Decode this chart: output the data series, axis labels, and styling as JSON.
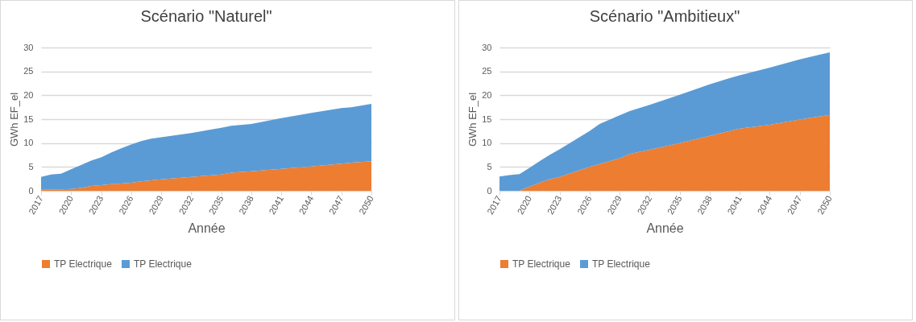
{
  "chart_data": [
    {
      "type": "area",
      "title": "Scénario \"Naturel\"",
      "xlabel": "Année",
      "ylabel": "GWh EF_el",
      "stacked": true,
      "grid": "y",
      "legend": "bottom",
      "x": [
        2017,
        2018,
        2019,
        2020,
        2021,
        2022,
        2023,
        2024,
        2025,
        2026,
        2027,
        2028,
        2029,
        2032,
        2035,
        2036,
        2038,
        2041,
        2044,
        2047,
        2048,
        2050
      ],
      "xlim": [
        2017,
        2050
      ],
      "xticks": [
        2017,
        2020,
        2023,
        2026,
        2029,
        2032,
        2035,
        2038,
        2041,
        2044,
        2047,
        2050
      ],
      "ylim": [
        0,
        30
      ],
      "yticks": [
        0,
        5,
        10,
        15,
        20,
        25,
        30
      ],
      "series": [
        {
          "name": "TP Electrique",
          "color": "#ed7d31",
          "values": [
            0.3,
            0.3,
            0.3,
            0.4,
            0.6,
            1.0,
            1.2,
            1.4,
            1.5,
            1.7,
            2.0,
            2.2,
            2.4,
            2.9,
            3.4,
            3.8,
            4.1,
            4.6,
            5.1,
            5.7,
            5.9,
            6.2
          ]
        },
        {
          "name": "TP Electrique",
          "color": "#5b9bd5",
          "values": [
            2.6,
            3.1,
            3.3,
            4.1,
            4.8,
            5.3,
            5.8,
            6.6,
            7.4,
            8.0,
            8.4,
            8.7,
            8.8,
            9.2,
            9.8,
            9.8,
            9.9,
            10.6,
            11.2,
            11.6,
            11.6,
            12.0
          ]
        }
      ]
    },
    {
      "type": "area",
      "title": "Scénario \"Ambitieux\"",
      "xlabel": "Année",
      "ylabel": "GWh EF_el",
      "stacked": true,
      "grid": "y",
      "legend": "bottom",
      "x": [
        2017,
        2018,
        2019,
        2020,
        2021,
        2022,
        2023,
        2026,
        2027,
        2029,
        2030,
        2032,
        2035,
        2038,
        2040,
        2041,
        2044,
        2047,
        2050
      ],
      "xlim": [
        2017,
        2050
      ],
      "xticks": [
        2017,
        2020,
        2023,
        2026,
        2029,
        2032,
        2035,
        2038,
        2041,
        2044,
        2047,
        2050
      ],
      "ylim": [
        0,
        30
      ],
      "yticks": [
        0,
        5,
        10,
        15,
        20,
        25,
        30
      ],
      "series": [
        {
          "name": "TP Electrique",
          "color": "#ed7d31",
          "values": [
            0,
            0,
            0,
            0.9,
            1.7,
            2.4,
            2.9,
            5.0,
            5.6,
            6.8,
            7.7,
            8.6,
            10.0,
            11.5,
            12.5,
            13.0,
            13.8,
            14.9,
            15.9
          ]
        },
        {
          "name": "TP Electrique",
          "color": "#5b9bd5",
          "values": [
            3.0,
            3.3,
            3.5,
            3.9,
            4.5,
            5.1,
            5.8,
            7.5,
            8.4,
            9.0,
            9.0,
            9.4,
            10.1,
            10.8,
            11.1,
            11.2,
            12.0,
            12.6,
            13.1
          ]
        }
      ]
    }
  ]
}
